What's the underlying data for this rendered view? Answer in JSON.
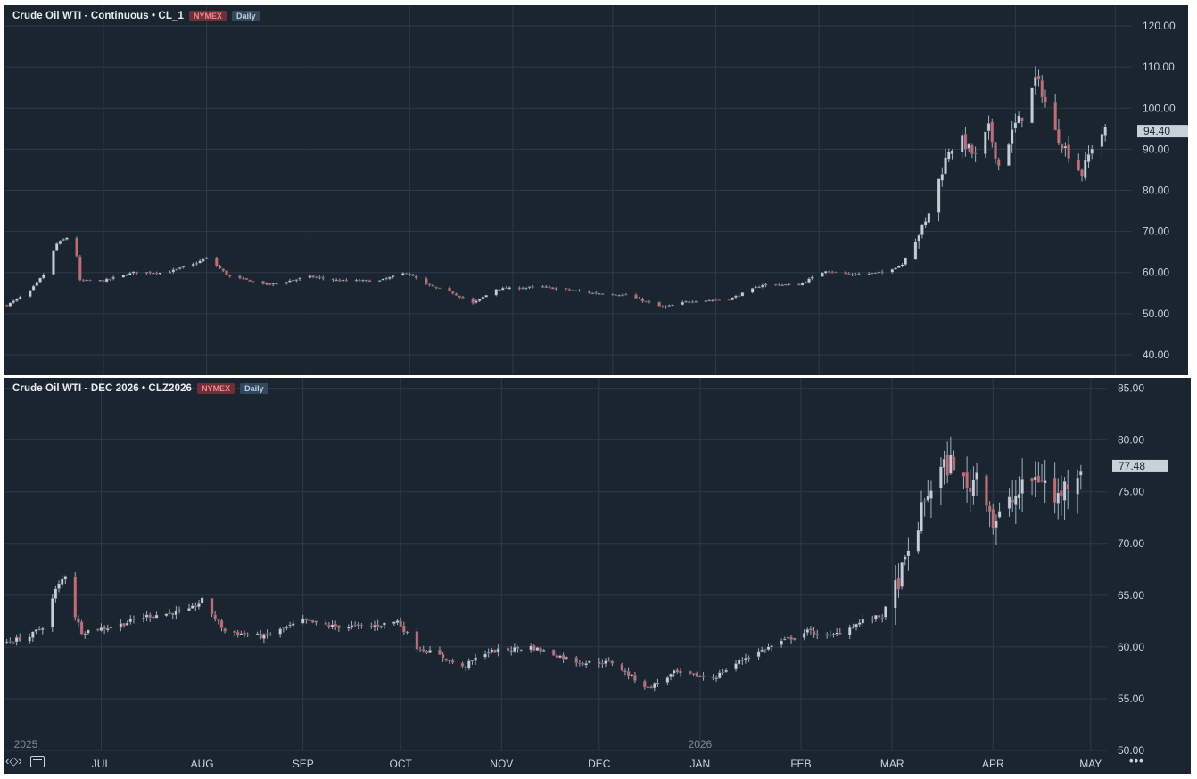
{
  "colors": {
    "background": "#1b2530",
    "grid": "#2c3a48",
    "text": "#c9d4de",
    "up_candle": "#c4ced6",
    "down_candle": "#c96a72",
    "price_tag_bg": "#c6d2da",
    "exchange_badge": "#6e2f36",
    "interval_badge": "#34485d"
  },
  "panels": [
    {
      "symbol_label": "Crude Oil WTI - Continuous • CL_1",
      "exchange": "NYMEX",
      "interval": "Daily",
      "last_price": "94.40"
    },
    {
      "symbol_label": "Crude Oil WTI - DEC 2026 • CLZ2026",
      "exchange": "NYMEX",
      "interval": "Daily",
      "last_price": "77.48"
    }
  ],
  "time_axis": {
    "year_labels": [
      "2025",
      "2026"
    ],
    "month_labels": [
      "JUL",
      "AUG",
      "SEP",
      "OCT",
      "NOV",
      "DEC",
      "JAN",
      "FEB",
      "MAR",
      "APR",
      "MAY"
    ]
  },
  "toolbar": {
    "nav_icon": "move-arrows-icon",
    "calendar_icon": "calendar-icon",
    "more_icon": "more-options-icon",
    "more_label": "•••"
  },
  "chart_data": [
    {
      "type": "candlestick",
      "title": "Crude Oil WTI - Continuous • CL_1",
      "interval": "Daily",
      "ylim": [
        35,
        125
      ],
      "y_ticks": [
        "40.00",
        "50.00",
        "60.00",
        "70.00",
        "80.00",
        "90.00",
        "100.00",
        "110.00",
        "120.00"
      ],
      "last_price": 94.4,
      "x_range": [
        "2025-06-01",
        "2026-05-06"
      ],
      "x_ticks": [
        "JUL",
        "AUG",
        "SEP",
        "OCT",
        "NOV",
        "DEC",
        "JAN",
        "FEB",
        "MAR",
        "APR",
        "MAY"
      ],
      "close_path": [
        [
          "2025-06-02",
          52.0
        ],
        [
          "2025-06-09",
          55.5
        ],
        [
          "2025-06-13",
          59.5
        ],
        [
          "2025-06-17",
          67.0
        ],
        [
          "2025-06-20",
          68.5
        ],
        [
          "2025-06-23",
          64.0
        ],
        [
          "2025-06-24",
          58.0
        ],
        [
          "2025-07-01",
          58.0
        ],
        [
          "2025-07-10",
          60.0
        ],
        [
          "2025-07-20",
          60.0
        ],
        [
          "2025-07-28",
          62.0
        ],
        [
          "2025-08-01",
          63.5
        ],
        [
          "2025-08-08",
          59.0
        ],
        [
          "2025-08-20",
          57.0
        ],
        [
          "2025-09-01",
          59.0
        ],
        [
          "2025-09-10",
          58.0
        ],
        [
          "2025-09-22",
          58.0
        ],
        [
          "2025-09-30",
          60.0
        ],
        [
          "2025-10-06",
          57.0
        ],
        [
          "2025-10-14",
          55.0
        ],
        [
          "2025-10-20",
          52.5
        ],
        [
          "2025-10-27",
          56.0
        ],
        [
          "2025-11-10",
          56.5
        ],
        [
          "2025-11-25",
          55.0
        ],
        [
          "2025-12-05",
          54.5
        ],
        [
          "2025-12-16",
          51.5
        ],
        [
          "2025-12-24",
          53.0
        ],
        [
          "2026-01-05",
          53.5
        ],
        [
          "2026-01-15",
          57.0
        ],
        [
          "2026-01-26",
          57.0
        ],
        [
          "2026-02-03",
          60.5
        ],
        [
          "2026-02-10",
          59.5
        ],
        [
          "2026-02-20",
          60.0
        ],
        [
          "2026-02-26",
          62.0
        ],
        [
          "2026-03-01",
          67.0
        ],
        [
          "2026-03-05",
          72.0
        ],
        [
          "2026-03-08",
          80.0
        ],
        [
          "2026-03-10",
          85.0
        ],
        [
          "2026-03-12",
          90.0
        ],
        [
          "2026-03-16",
          92.0
        ],
        [
          "2026-03-20",
          88.0
        ],
        [
          "2026-03-24",
          95.0
        ],
        [
          "2026-03-27",
          86.0
        ],
        [
          "2026-04-01",
          96.0
        ],
        [
          "2026-04-04",
          99.0
        ],
        [
          "2026-04-07",
          107.0
        ],
        [
          "2026-04-09",
          104.0
        ],
        [
          "2026-04-13",
          94.0
        ],
        [
          "2026-04-17",
          89.0
        ],
        [
          "2026-04-21",
          84.0
        ],
        [
          "2026-04-25",
          93.0
        ],
        [
          "2026-04-28",
          94.4
        ]
      ]
    },
    {
      "type": "candlestick",
      "title": "Crude Oil WTI - DEC 2026 • CLZ2026",
      "interval": "Daily",
      "ylim": [
        50,
        86
      ],
      "y_ticks": [
        "50.00",
        "55.00",
        "60.00",
        "65.00",
        "70.00",
        "75.00",
        "80.00",
        "85.00"
      ],
      "last_price": 77.48,
      "x_range": [
        "2025-06-01",
        "2026-05-06"
      ],
      "x_ticks": [
        "JUL",
        "AUG",
        "SEP",
        "OCT",
        "NOV",
        "DEC",
        "JAN",
        "FEB",
        "MAR",
        "APR",
        "MAY"
      ],
      "close_path": [
        [
          "2025-06-02",
          60.5
        ],
        [
          "2025-06-09",
          61.0
        ],
        [
          "2025-06-13",
          62.0
        ],
        [
          "2025-06-17",
          65.5
        ],
        [
          "2025-06-20",
          67.0
        ],
        [
          "2025-06-23",
          63.0
        ],
        [
          "2025-06-25",
          61.5
        ],
        [
          "2025-07-05",
          62.0
        ],
        [
          "2025-07-15",
          63.0
        ],
        [
          "2025-07-28",
          63.5
        ],
        [
          "2025-08-01",
          64.5
        ],
        [
          "2025-08-08",
          61.5
        ],
        [
          "2025-08-20",
          61.0
        ],
        [
          "2025-09-01",
          62.5
        ],
        [
          "2025-09-10",
          62.0
        ],
        [
          "2025-09-22",
          62.0
        ],
        [
          "2025-09-30",
          62.5
        ],
        [
          "2025-10-06",
          60.0
        ],
        [
          "2025-10-14",
          59.0
        ],
        [
          "2025-10-20",
          58.0
        ],
        [
          "2025-10-27",
          59.5
        ],
        [
          "2025-11-10",
          60.0
        ],
        [
          "2025-11-25",
          58.5
        ],
        [
          "2025-12-05",
          58.5
        ],
        [
          "2025-12-16",
          56.0
        ],
        [
          "2025-12-24",
          57.5
        ],
        [
          "2026-01-05",
          57.0
        ],
        [
          "2026-01-15",
          59.0
        ],
        [
          "2026-01-26",
          60.5
        ],
        [
          "2026-02-03",
          61.5
        ],
        [
          "2026-02-10",
          61.0
        ],
        [
          "2026-02-20",
          62.5
        ],
        [
          "2026-02-26",
          63.0
        ],
        [
          "2026-03-01",
          65.0
        ],
        [
          "2026-03-05",
          68.0
        ],
        [
          "2026-03-08",
          71.0
        ],
        [
          "2026-03-12",
          75.0
        ],
        [
          "2026-03-16",
          77.0
        ],
        [
          "2026-03-20",
          78.0
        ],
        [
          "2026-03-24",
          75.0
        ],
        [
          "2026-03-28",
          77.5
        ],
        [
          "2026-04-01",
          72.0
        ],
        [
          "2026-04-04",
          73.0
        ],
        [
          "2026-04-08",
          74.5
        ],
        [
          "2026-04-12",
          76.0
        ],
        [
          "2026-04-16",
          76.5
        ],
        [
          "2026-04-20",
          74.0
        ],
        [
          "2026-04-24",
          76.0
        ],
        [
          "2026-04-28",
          77.48
        ]
      ]
    }
  ]
}
